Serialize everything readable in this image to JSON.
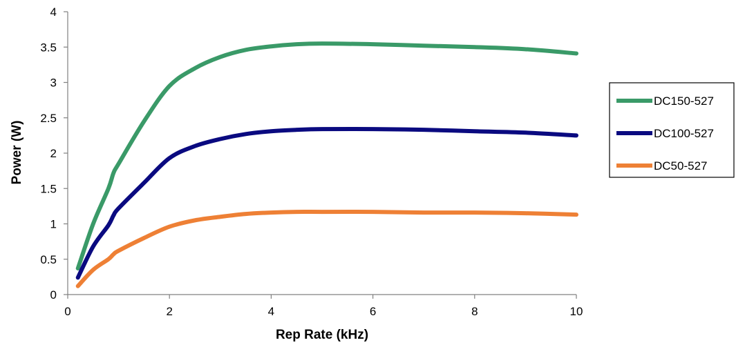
{
  "chart_data": {
    "type": "line",
    "xlabel": "Rep Rate (kHz)",
    "ylabel": "Power (W)",
    "xlim": [
      0,
      10
    ],
    "ylim": [
      0,
      4
    ],
    "x_ticks": [
      0,
      2,
      4,
      6,
      8,
      10
    ],
    "y_ticks": [
      0,
      0.5,
      1,
      1.5,
      2,
      2.5,
      3,
      3.5,
      4
    ],
    "x_tick_labels": [
      "0",
      "2",
      "4",
      "6",
      "8",
      "10"
    ],
    "y_tick_labels": [
      "0",
      "0.5",
      "1",
      "1.5",
      "2",
      "2.5",
      "3",
      "3.5",
      "4"
    ],
    "grid": false,
    "legend_position": "right",
    "series": [
      {
        "name": "DC150-527",
        "color": "#3a9a68",
        "x": [
          0.2,
          0.5,
          0.8,
          0.9,
          1.0,
          1.5,
          2.0,
          2.5,
          3.0,
          3.5,
          4.0,
          4.5,
          5.0,
          6.0,
          7.0,
          8.0,
          9.0,
          10.0
        ],
        "y": [
          0.37,
          1.0,
          1.5,
          1.72,
          1.85,
          2.45,
          2.95,
          3.2,
          3.36,
          3.46,
          3.51,
          3.54,
          3.55,
          3.54,
          3.52,
          3.5,
          3.47,
          3.41
        ]
      },
      {
        "name": "DC100-527",
        "color": "#0a0a80",
        "x": [
          0.2,
          0.5,
          0.8,
          0.9,
          1.0,
          1.5,
          2.0,
          2.5,
          3.0,
          3.5,
          4.0,
          4.5,
          5.0,
          6.0,
          7.0,
          8.0,
          9.0,
          10.0
        ],
        "y": [
          0.24,
          0.68,
          0.98,
          1.12,
          1.22,
          1.58,
          1.93,
          2.1,
          2.2,
          2.27,
          2.31,
          2.33,
          2.34,
          2.34,
          2.33,
          2.31,
          2.29,
          2.25
        ]
      },
      {
        "name": "DC50-527",
        "color": "#ee8035",
        "x": [
          0.2,
          0.5,
          0.8,
          0.9,
          1.0,
          1.5,
          2.0,
          2.5,
          3.0,
          3.5,
          4.0,
          4.5,
          5.0,
          6.0,
          7.0,
          8.0,
          9.0,
          10.0
        ],
        "y": [
          0.12,
          0.35,
          0.5,
          0.57,
          0.62,
          0.8,
          0.96,
          1.05,
          1.1,
          1.14,
          1.16,
          1.17,
          1.17,
          1.17,
          1.16,
          1.16,
          1.15,
          1.13
        ]
      }
    ]
  }
}
